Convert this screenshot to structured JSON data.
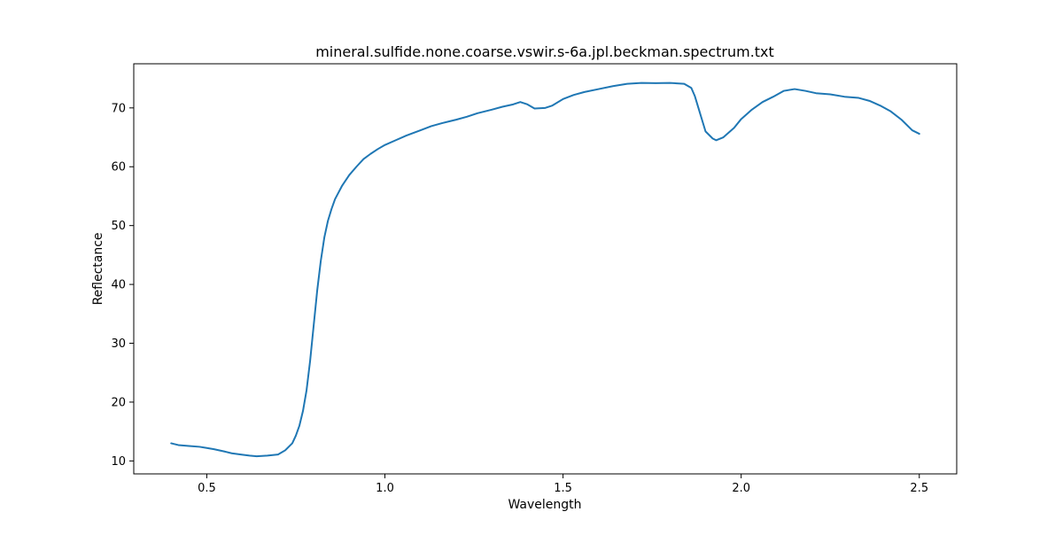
{
  "chart_data": {
    "type": "line",
    "title": "mineral.sulfide.none.coarse.vswir.s-6a.jpl.beckman.spectrum.txt",
    "xlabel": "Wavelength",
    "ylabel": "Reflectance",
    "xlim": [
      0.295,
      2.605
    ],
    "ylim": [
      7.8,
      77.5
    ],
    "xticks": [
      0.5,
      1.0,
      1.5,
      2.0,
      2.5
    ],
    "xtick_labels": [
      "0.5",
      "1.0",
      "1.5",
      "2.0",
      "2.5"
    ],
    "yticks": [
      10,
      20,
      30,
      40,
      50,
      60,
      70
    ],
    "ytick_labels": [
      "10",
      "20",
      "30",
      "40",
      "50",
      "60",
      "70"
    ],
    "grid": false,
    "legend": "none",
    "series": [
      {
        "color": "#1f77b4",
        "points": [
          [
            0.4,
            13.0
          ],
          [
            0.42,
            12.7
          ],
          [
            0.45,
            12.55
          ],
          [
            0.48,
            12.4
          ],
          [
            0.5,
            12.2
          ],
          [
            0.52,
            12.0
          ],
          [
            0.55,
            11.6
          ],
          [
            0.57,
            11.3
          ],
          [
            0.6,
            11.05
          ],
          [
            0.62,
            10.9
          ],
          [
            0.64,
            10.8
          ],
          [
            0.67,
            10.9
          ],
          [
            0.7,
            11.1
          ],
          [
            0.72,
            11.8
          ],
          [
            0.74,
            13.0
          ],
          [
            0.75,
            14.3
          ],
          [
            0.76,
            16.0
          ],
          [
            0.77,
            18.5
          ],
          [
            0.78,
            22.0
          ],
          [
            0.79,
            27.0
          ],
          [
            0.8,
            33.0
          ],
          [
            0.81,
            39.0
          ],
          [
            0.82,
            44.0
          ],
          [
            0.83,
            48.0
          ],
          [
            0.84,
            50.8
          ],
          [
            0.85,
            52.8
          ],
          [
            0.86,
            54.5
          ],
          [
            0.88,
            56.8
          ],
          [
            0.9,
            58.6
          ],
          [
            0.92,
            60.0
          ],
          [
            0.94,
            61.3
          ],
          [
            0.96,
            62.2
          ],
          [
            0.98,
            63.0
          ],
          [
            1.0,
            63.7
          ],
          [
            1.03,
            64.5
          ],
          [
            1.06,
            65.3
          ],
          [
            1.1,
            66.2
          ],
          [
            1.13,
            66.9
          ],
          [
            1.16,
            67.4
          ],
          [
            1.2,
            68.0
          ],
          [
            1.23,
            68.5
          ],
          [
            1.26,
            69.1
          ],
          [
            1.3,
            69.7
          ],
          [
            1.33,
            70.2
          ],
          [
            1.36,
            70.6
          ],
          [
            1.38,
            71.0
          ],
          [
            1.4,
            70.6
          ],
          [
            1.42,
            69.9
          ],
          [
            1.45,
            70.0
          ],
          [
            1.47,
            70.4
          ],
          [
            1.5,
            71.5
          ],
          [
            1.53,
            72.2
          ],
          [
            1.56,
            72.7
          ],
          [
            1.6,
            73.2
          ],
          [
            1.64,
            73.7
          ],
          [
            1.68,
            74.1
          ],
          [
            1.72,
            74.25
          ],
          [
            1.76,
            74.2
          ],
          [
            1.8,
            74.25
          ],
          [
            1.84,
            74.1
          ],
          [
            1.86,
            73.4
          ],
          [
            1.87,
            72.0
          ],
          [
            1.88,
            70.0
          ],
          [
            1.89,
            68.0
          ],
          [
            1.9,
            66.0
          ],
          [
            1.92,
            64.8
          ],
          [
            1.93,
            64.5
          ],
          [
            1.95,
            65.0
          ],
          [
            1.98,
            66.6
          ],
          [
            2.0,
            68.1
          ],
          [
            2.03,
            69.7
          ],
          [
            2.06,
            71.0
          ],
          [
            2.09,
            71.9
          ],
          [
            2.12,
            72.9
          ],
          [
            2.15,
            73.2
          ],
          [
            2.18,
            72.9
          ],
          [
            2.21,
            72.5
          ],
          [
            2.25,
            72.3
          ],
          [
            2.29,
            71.9
          ],
          [
            2.33,
            71.7
          ],
          [
            2.36,
            71.2
          ],
          [
            2.39,
            70.4
          ],
          [
            2.42,
            69.4
          ],
          [
            2.45,
            68.0
          ],
          [
            2.48,
            66.2
          ],
          [
            2.5,
            65.6
          ]
        ]
      }
    ]
  }
}
